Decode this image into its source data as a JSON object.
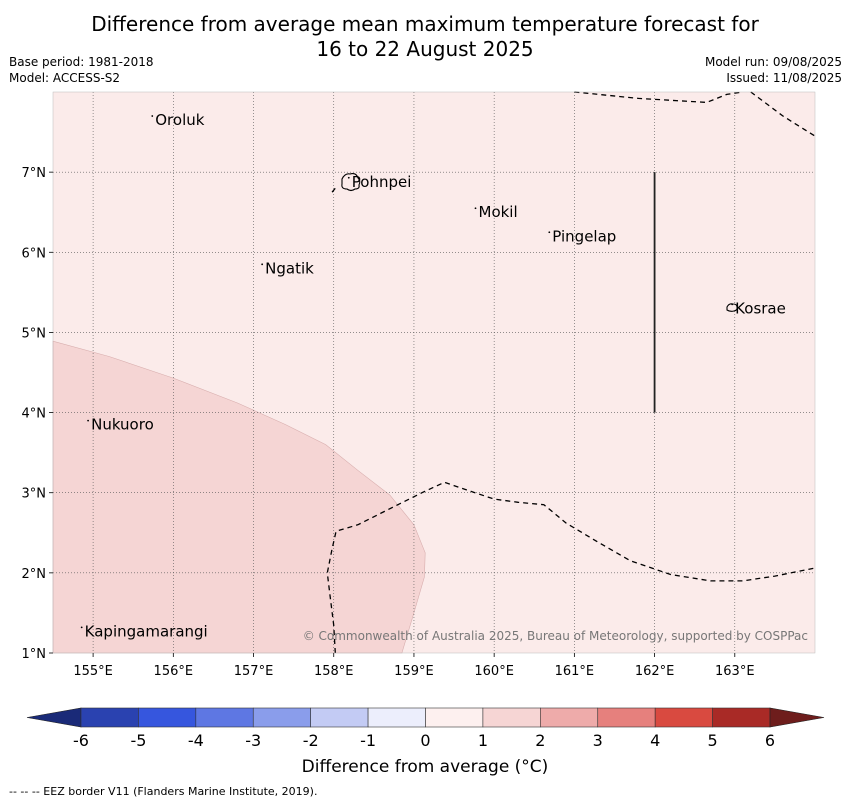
{
  "title_line1": "Difference from average mean maximum temperature forecast for",
  "title_line2": "16 to 22 August 2025",
  "base_period": "Base period: 1981-2018",
  "model": "Model: ACCESS-S2",
  "model_run": "Model run: 09/08/2025",
  "issued": "Issued: 11/08/2025",
  "copyright": "© Commonwealth of Australia 2025, Bureau of Meteorology, supported by COSPPac",
  "map": {
    "lon_range": [
      154.5,
      164.0
    ],
    "lat_range": [
      1.0,
      8.0
    ],
    "lon_ticks": [
      "155°E",
      "156°E",
      "157°E",
      "158°E",
      "159°E",
      "160°E",
      "161°E",
      "162°E",
      "163°E"
    ],
    "lat_ticks": [
      "1°N",
      "2°N",
      "3°N",
      "4°N",
      "5°N",
      "6°N",
      "7°N"
    ],
    "background_anomaly_class": "0 to 1",
    "background_color": "#fbebea",
    "warm_region_anomaly_class": "1 to 2",
    "warm_region_color": "#f5d5d4",
    "places": [
      {
        "name": "Oroluk",
        "lon": 155.75,
        "lat": 7.65
      },
      {
        "name": "Pohnpei",
        "lon": 158.2,
        "lat": 6.88
      },
      {
        "name": "Mokil",
        "lon": 159.78,
        "lat": 6.5
      },
      {
        "name": "Pingelap",
        "lon": 160.7,
        "lat": 6.2
      },
      {
        "name": "Ngatik",
        "lon": 157.12,
        "lat": 5.8
      },
      {
        "name": "Kosrae",
        "lon": 162.98,
        "lat": 5.3
      },
      {
        "name": "Nukuoro",
        "lon": 154.95,
        "lat": 3.85
      },
      {
        "name": "Kapingamarangi",
        "lon": 154.87,
        "lat": 1.27
      }
    ]
  },
  "colorbar": {
    "label": "Difference from average (°C)",
    "ticks": [
      "-6",
      "-5",
      "-4",
      "-3",
      "-2",
      "-1",
      "0",
      "1",
      "2",
      "3",
      "4",
      "5",
      "6"
    ],
    "colors": [
      "#2a42b0",
      "#3656de",
      "#5e77e3",
      "#8a9deb",
      "#c3cbf4",
      "#eceefc",
      "#fdf0ef",
      "#f6d5d4",
      "#eeabaa",
      "#e6807d",
      "#d94a40",
      "#a92a26"
    ],
    "under_color": "#1a2a78",
    "over_color": "#6e1d1c"
  },
  "footnote": "--  --  -- EEZ border V11 (Flanders Marine Institute, 2019)."
}
